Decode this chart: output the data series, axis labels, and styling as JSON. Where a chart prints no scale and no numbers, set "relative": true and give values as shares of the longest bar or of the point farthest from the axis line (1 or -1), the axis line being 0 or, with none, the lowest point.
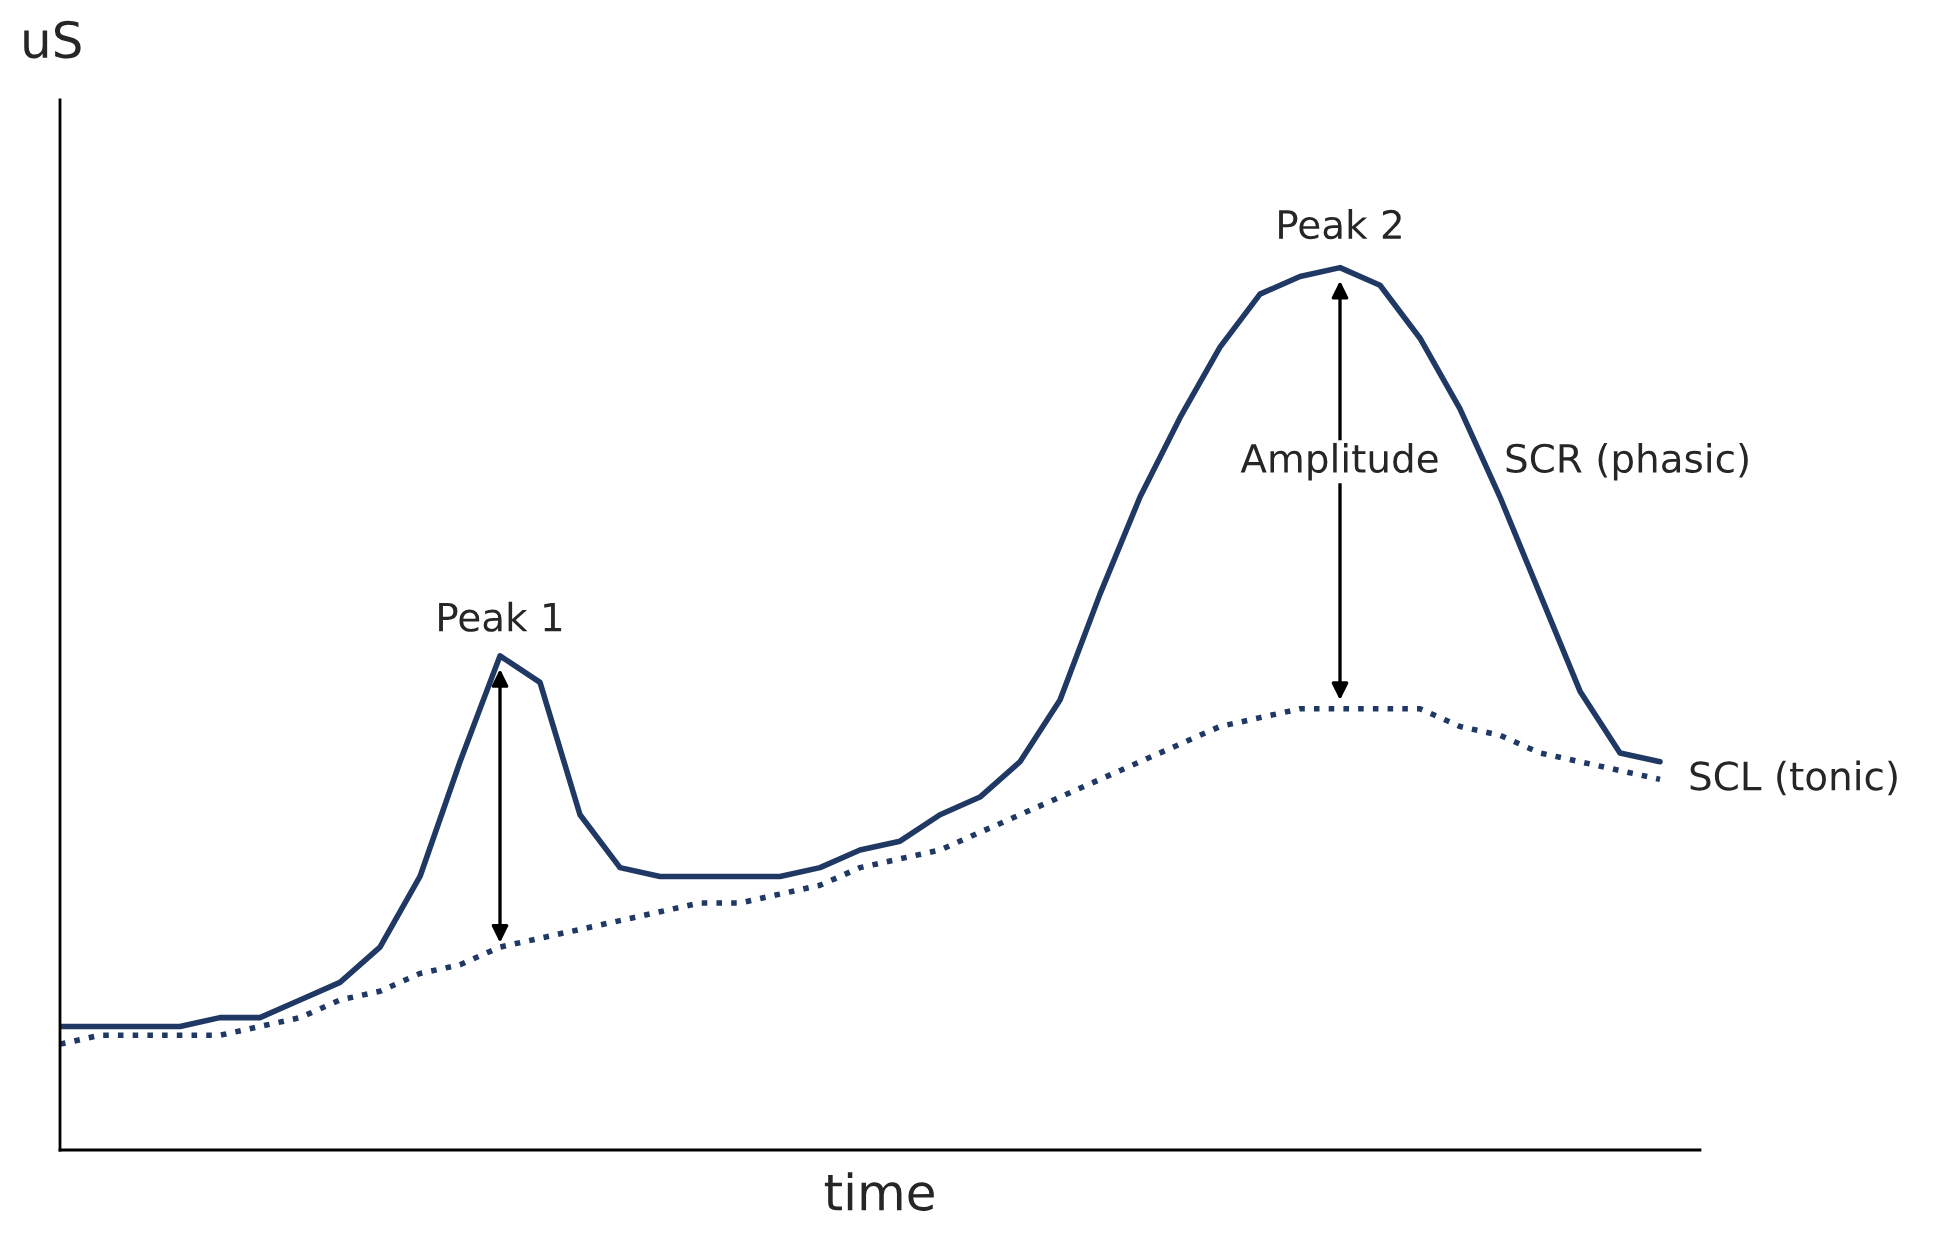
{
  "chart_data": {
    "type": "line",
    "relative": true,
    "xlabel": "time",
    "ylabel": "uS",
    "categories": [
      null,
      null,
      null,
      null,
      null,
      null,
      null,
      null,
      null,
      null,
      null,
      null,
      null,
      null,
      null,
      null,
      null,
      null,
      null,
      null,
      null,
      null,
      null,
      null,
      null,
      null,
      null,
      null,
      null,
      null,
      null,
      null,
      null,
      null,
      null,
      null,
      null,
      null,
      null,
      null,
      null,
      null
    ],
    "series": [
      {
        "name": "SCR (phasic)",
        "color": "#1f3864",
        "line_style": "solid",
        "values": [
          0.14,
          0.14,
          0.14,
          0.14,
          0.15,
          0.15,
          0.17,
          0.19,
          0.23,
          0.31,
          0.44,
          0.56,
          0.53,
          0.38,
          0.32,
          0.31,
          0.31,
          0.31,
          0.31,
          0.32,
          0.34,
          0.35,
          0.38,
          0.4,
          0.44,
          0.51,
          0.63,
          0.74,
          0.83,
          0.91,
          0.97,
          0.99,
          1.0,
          0.98,
          0.92,
          0.84,
          0.74,
          0.63,
          0.52,
          0.45,
          0.44,
          null
        ]
      },
      {
        "name": "SCL (tonic)",
        "color": "#1f3864",
        "line_style": "dotted",
        "values": [
          0.12,
          0.13,
          0.13,
          0.13,
          0.13,
          0.14,
          0.15,
          0.17,
          0.18,
          0.2,
          0.21,
          0.23,
          0.24,
          0.25,
          0.26,
          0.27,
          0.28,
          0.28,
          0.29,
          0.3,
          0.32,
          0.33,
          0.34,
          0.36,
          0.38,
          0.4,
          0.42,
          0.44,
          0.46,
          0.48,
          0.49,
          0.5,
          0.5,
          0.5,
          0.5,
          0.48,
          0.47,
          0.45,
          0.44,
          0.43,
          0.42,
          null
        ]
      }
    ],
    "annotations": [
      "Peak 1",
      "Peak 2",
      "Amplitude"
    ],
    "legend": false,
    "marker": "none",
    "tick_labels": false
  }
}
